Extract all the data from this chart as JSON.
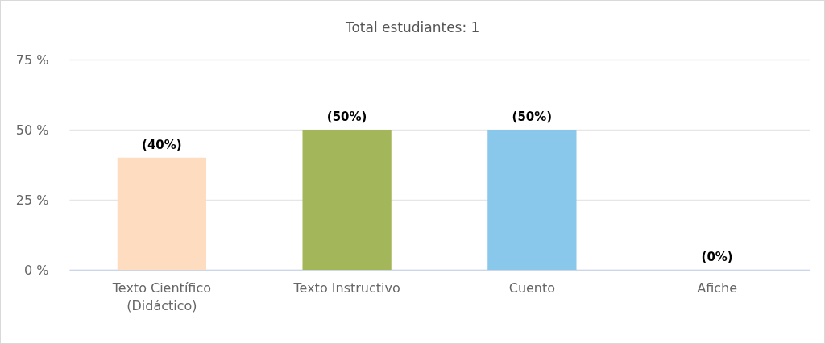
{
  "chart_data": {
    "type": "bar",
    "title": "Total estudiantes: 1",
    "categories": [
      "Texto Científico\n(Didáctico)",
      "Texto Instructivo",
      "Cuento",
      "Afiche"
    ],
    "values": [
      40,
      50,
      50,
      0
    ],
    "colors": [
      "#fddcc0",
      "#a3b65a",
      "#89c7eb",
      null
    ],
    "value_labels": [
      "(40%)",
      "(50%)",
      "(50%)",
      "(0%)"
    ],
    "ylim": [
      0,
      75
    ],
    "yticks": [
      {
        "value": 0,
        "label": "0 %"
      },
      {
        "value": 25,
        "label": "25 %"
      },
      {
        "value": 50,
        "label": "50 %"
      },
      {
        "value": 75,
        "label": "75 %"
      }
    ],
    "grid": "y"
  }
}
